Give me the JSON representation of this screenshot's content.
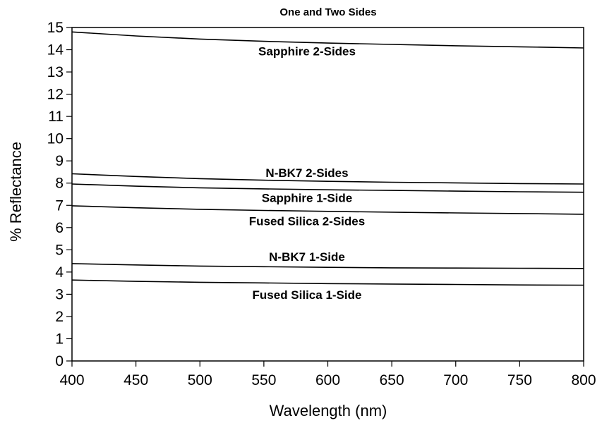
{
  "chart_data": {
    "type": "line",
    "title": "One and Two Sides",
    "xlabel": "Wavelength (nm)",
    "ylabel": "% Reflectance",
    "xlim": [
      400,
      800
    ],
    "ylim": [
      0,
      15
    ],
    "xticks": [
      400,
      450,
      500,
      550,
      600,
      650,
      700,
      750,
      800
    ],
    "yticks": [
      0,
      1,
      2,
      3,
      4,
      5,
      6,
      7,
      8,
      9,
      10,
      11,
      12,
      13,
      14,
      15
    ],
    "grid": false,
    "legend": "inline labels",
    "series": [
      {
        "name": "Sapphire 2-Sides",
        "x": [
          400,
          450,
          500,
          550,
          600,
          650,
          700,
          750,
          800
        ],
        "y": [
          14.8,
          14.62,
          14.48,
          14.38,
          14.3,
          14.24,
          14.18,
          14.13,
          14.08
        ]
      },
      {
        "name": "N-BK7 2-Sides",
        "x": [
          400,
          450,
          500,
          550,
          600,
          650,
          700,
          750,
          800
        ],
        "y": [
          8.42,
          8.3,
          8.2,
          8.13,
          8.08,
          8.04,
          8.01,
          7.98,
          7.96
        ]
      },
      {
        "name": "Sapphire 1-Side",
        "x": [
          400,
          450,
          500,
          550,
          600,
          650,
          700,
          750,
          800
        ],
        "y": [
          7.96,
          7.86,
          7.79,
          7.74,
          7.7,
          7.67,
          7.64,
          7.61,
          7.59
        ]
      },
      {
        "name": "Fused Silica 2-Sides",
        "x": [
          400,
          450,
          500,
          550,
          600,
          650,
          700,
          750,
          800
        ],
        "y": [
          6.98,
          6.89,
          6.82,
          6.77,
          6.73,
          6.69,
          6.66,
          6.63,
          6.6
        ]
      },
      {
        "name": "N-BK7 1-Side",
        "x": [
          400,
          450,
          500,
          550,
          600,
          650,
          700,
          750,
          800
        ],
        "y": [
          4.38,
          4.32,
          4.27,
          4.24,
          4.21,
          4.19,
          4.18,
          4.17,
          4.16
        ]
      },
      {
        "name": "Fused Silica 1-Side",
        "x": [
          400,
          450,
          500,
          550,
          600,
          650,
          700,
          750,
          800
        ],
        "y": [
          3.64,
          3.58,
          3.54,
          3.51,
          3.48,
          3.46,
          3.44,
          3.42,
          3.41
        ]
      }
    ]
  }
}
